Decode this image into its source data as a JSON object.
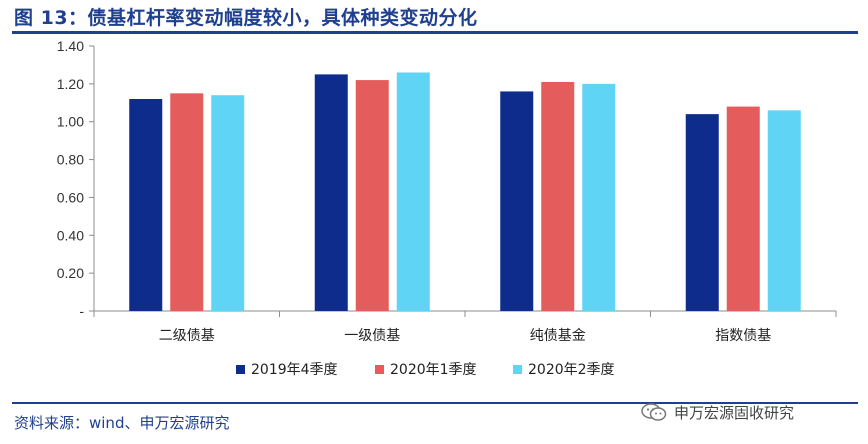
{
  "figure": {
    "title": "图 13：债基杠杆率变动幅度较小，具体种类变动分化",
    "source": "资料来源：wind、申万宏源研究"
  },
  "watermark": {
    "icon": "wechat-icon",
    "text": "申万宏源固收研究"
  },
  "colors": {
    "accent": "#1f3f8f",
    "series": [
      "#0d2c8c",
      "#e55c5c",
      "#5fd4f5"
    ]
  },
  "chart_data": {
    "type": "bar",
    "title": "",
    "xlabel": "",
    "ylabel": "",
    "ylim": [
      0,
      1.4
    ],
    "yticks": [
      0,
      0.2,
      0.4,
      0.6,
      0.8,
      1.0,
      1.2,
      1.4
    ],
    "ytick_labels": [
      "-",
      "0.20",
      "0.40",
      "0.60",
      "0.80",
      "1.00",
      "1.20",
      "1.40"
    ],
    "grid": false,
    "legend_position": "bottom",
    "categories": [
      "二级债基",
      "一级债基",
      "纯债基金",
      "指数债基"
    ],
    "series": [
      {
        "name": "2019年4季度",
        "values": [
          1.12,
          1.25,
          1.16,
          1.04
        ]
      },
      {
        "name": "2020年1季度",
        "values": [
          1.15,
          1.22,
          1.21,
          1.08
        ]
      },
      {
        "name": "2020年2季度",
        "values": [
          1.14,
          1.26,
          1.2,
          1.06
        ]
      }
    ]
  }
}
